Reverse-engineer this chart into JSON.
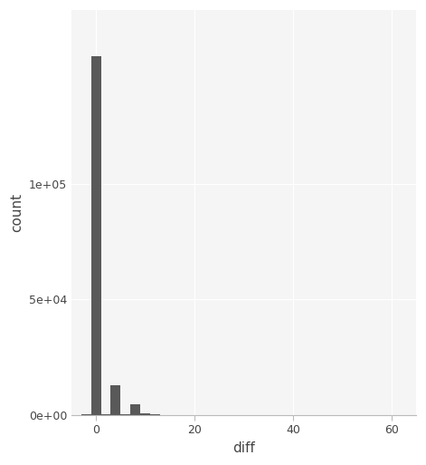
{
  "title": "",
  "xlabel": "diff",
  "ylabel": "count",
  "bar_color": "#595959",
  "background_color": "#ffffff",
  "panel_background": "#f5f5f5",
  "grid_color": "#ffffff",
  "xlim": [
    -5,
    65
  ],
  "ylim": [
    0,
    175000
  ],
  "xticks": [
    0,
    20,
    40,
    60
  ],
  "ytick_values": [
    0,
    50000,
    100000
  ],
  "ytick_labels": [
    "0e+00",
    "5e+04",
    "1e+05"
  ],
  "bin_edges": [
    -3,
    -1,
    1,
    3,
    5,
    7,
    9,
    11,
    13,
    15,
    62,
    63
  ],
  "bin_heights": [
    500,
    155000,
    300,
    13000,
    400,
    4500,
    600,
    300,
    150,
    150,
    100
  ]
}
